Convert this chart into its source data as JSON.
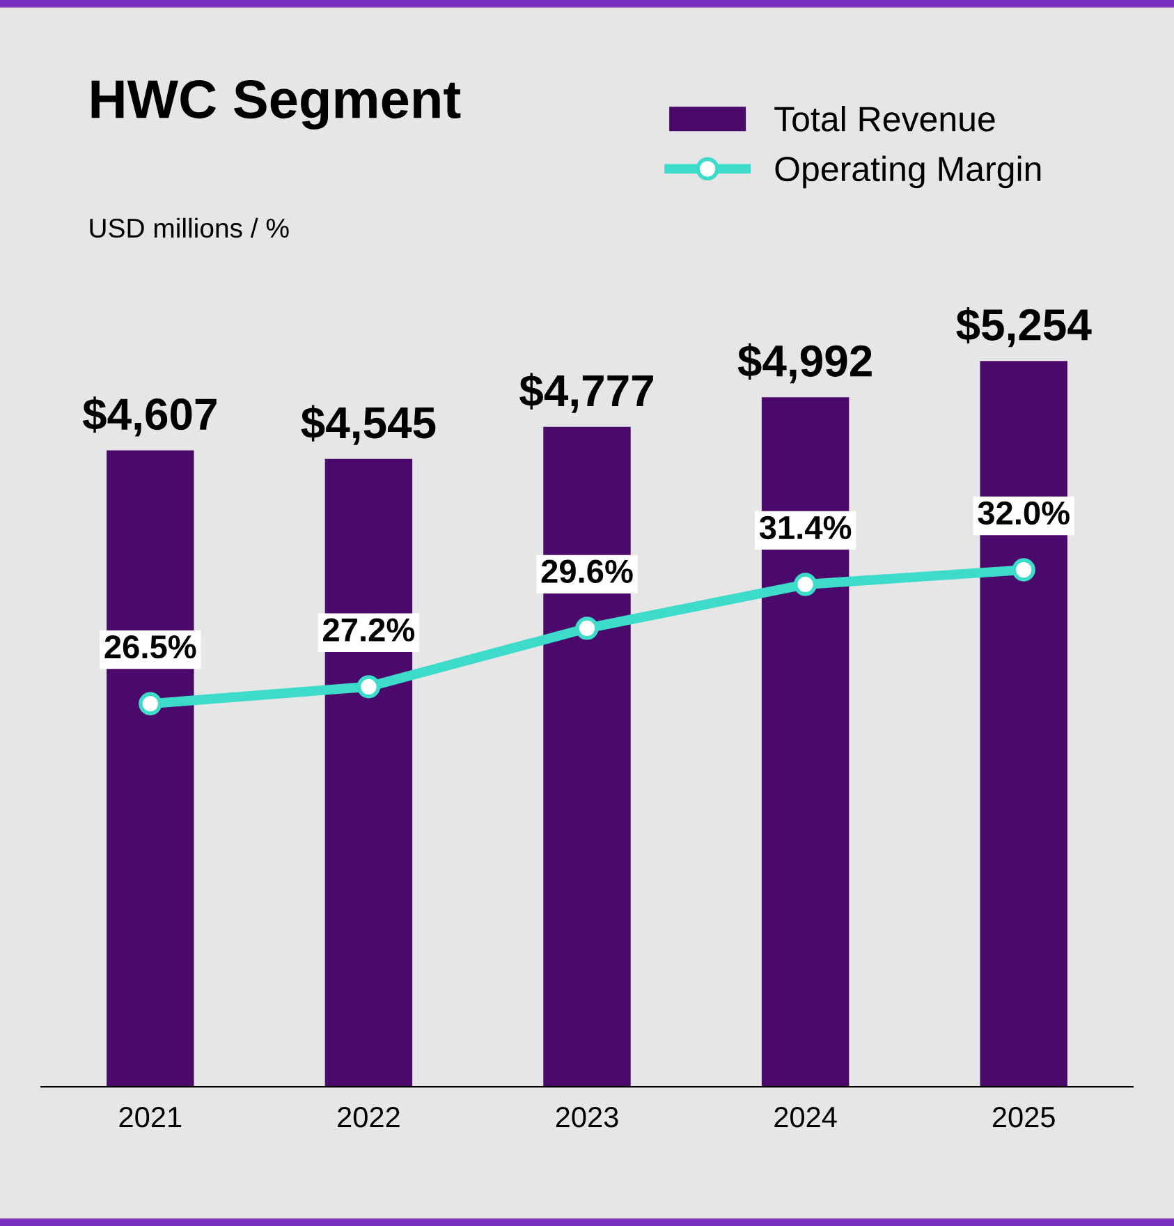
{
  "chart_data": {
    "type": "bar",
    "title": "HWC Segment",
    "subtitle": "USD millions / %",
    "categories": [
      "2021",
      "2022",
      "2023",
      "2024",
      "2025"
    ],
    "series": [
      {
        "name": "Total Revenue",
        "color": "#4b0a6b",
        "values": [
          4607,
          4545,
          4777,
          4992,
          5254
        ],
        "value_labels": [
          "$4,607",
          "$4,545",
          "$4,777",
          "$4,992",
          "$5,254"
        ]
      },
      {
        "name": "Operating Margin",
        "type": "line",
        "axis": "y2",
        "color": "#3ddbc9",
        "values": [
          26.5,
          27.2,
          29.6,
          31.4,
          32.0
        ],
        "value_labels": [
          "26.5%",
          "27.2%",
          "29.6%",
          "31.4%",
          "32.0%"
        ]
      }
    ],
    "tick_labels": "x",
    "legend": "top right",
    "marker": "circle",
    "line_style": "solid",
    "grid": false
  }
}
